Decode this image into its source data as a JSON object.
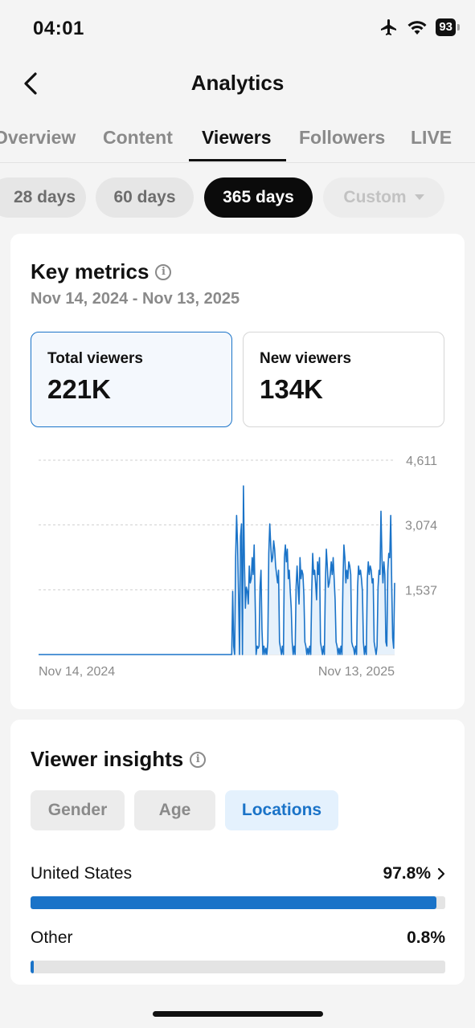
{
  "status": {
    "time": "04:01",
    "battery": "93"
  },
  "nav": {
    "title": "Analytics"
  },
  "tabs": [
    {
      "label": "Overview"
    },
    {
      "label": "Content"
    },
    {
      "label": "Viewers"
    },
    {
      "label": "Followers"
    },
    {
      "label": "LIVE"
    }
  ],
  "ranges": [
    {
      "label": "28 days"
    },
    {
      "label": "60 days"
    },
    {
      "label": "365 days"
    },
    {
      "label": "Custom"
    }
  ],
  "key_metrics": {
    "title": "Key metrics",
    "date_range": "Nov 14, 2024 - Nov 13, 2025",
    "total": {
      "label": "Total viewers",
      "value": "221K"
    },
    "new": {
      "label": "New viewers",
      "value": "134K"
    }
  },
  "chart_data": {
    "type": "area",
    "series": [
      {
        "values": [
          0,
          0,
          0,
          0,
          0,
          0,
          0,
          0,
          0,
          0,
          0,
          0,
          0,
          0,
          0,
          0,
          0,
          0,
          0,
          0,
          0,
          0,
          0,
          0,
          0,
          0,
          0,
          0,
          0,
          0,
          0,
          0,
          0,
          0,
          0,
          0,
          0,
          0,
          0,
          0,
          0,
          0,
          0,
          0,
          0,
          0,
          0,
          0,
          0,
          0,
          0,
          0,
          0,
          0,
          0,
          0,
          0,
          0,
          0,
          0,
          0,
          0,
          0,
          0,
          0,
          0,
          0,
          0,
          0,
          0,
          0,
          0,
          0,
          0,
          0,
          0,
          0,
          0,
          0,
          0,
          0,
          0,
          0,
          0,
          0,
          0,
          0,
          0,
          0,
          0,
          0,
          0,
          0,
          0,
          0,
          0,
          0,
          0,
          0,
          0,
          0,
          0,
          0,
          0,
          0,
          0,
          0,
          0,
          0,
          0,
          0,
          0,
          0,
          0,
          0,
          0,
          0,
          0,
          0,
          0,
          0,
          0,
          0,
          0,
          0,
          0,
          0,
          0,
          0,
          0,
          0,
          0,
          0,
          0,
          0,
          0,
          0,
          0,
          0,
          0,
          0,
          0,
          0,
          0,
          0,
          0,
          0,
          0,
          0,
          0,
          0,
          0,
          0,
          0,
          0,
          0,
          0,
          0,
          0,
          0,
          0,
          0,
          0,
          0,
          0,
          0,
          0,
          0,
          0,
          0,
          0,
          0,
          0,
          0,
          0,
          0,
          0,
          0,
          0,
          0,
          0,
          0,
          0,
          0,
          0,
          0,
          0,
          0,
          0,
          0,
          0,
          0,
          0,
          0,
          0,
          0,
          0,
          0,
          0,
          0,
          0,
          0,
          0,
          0,
          0,
          0,
          0,
          0,
          0,
          0,
          0,
          0,
          0,
          0,
          0,
          0,
          0,
          0,
          0,
          0,
          0,
          0,
          0,
          0,
          0,
          0,
          0,
          0,
          0,
          0,
          0,
          0,
          0,
          0,
          0,
          0,
          0,
          0,
          0,
          0,
          0,
          0,
          0,
          0,
          0,
          0,
          0,
          0,
          0,
          0,
          0,
          0,
          0,
          0,
          0,
          0,
          0,
          0,
          0,
          0,
          0,
          0,
          0,
          0,
          0,
          0,
          0,
          0,
          0,
          0,
          0,
          0,
          0,
          0,
          0,
          0,
          0,
          0,
          0,
          0,
          0,
          0,
          0,
          0,
          0,
          0,
          0,
          0,
          0,
          0,
          0,
          0,
          0,
          0,
          0,
          0,
          0,
          0,
          0,
          0,
          0,
          0,
          0,
          0,
          0,
          0,
          0,
          0,
          0,
          0,
          0,
          0,
          0,
          0,
          0,
          0,
          0,
          0,
          0,
          0,
          0,
          0,
          0,
          0,
          0,
          0,
          0,
          0,
          0,
          0,
          0,
          0,
          0,
          0,
          0,
          0,
          0,
          0,
          0,
          0,
          0,
          0,
          0,
          0,
          0,
          0,
          0,
          0,
          0,
          0,
          0,
          0,
          0,
          0,
          0,
          0,
          0,
          0,
          0,
          0,
          0,
          0,
          0,
          0,
          0,
          0,
          0,
          0,
          0,
          0,
          0,
          0,
          0,
          0,
          0,
          0,
          0,
          0,
          0,
          0,
          0,
          0,
          0
        ]
      }
    ],
    "peaks": [
      [
        199,
        1500
      ],
      [
        200,
        200
      ],
      [
        202,
        2300
      ],
      [
        203,
        3300
      ],
      [
        204,
        2600
      ],
      [
        205,
        1400
      ],
      [
        207,
        2800
      ],
      [
        208,
        3100
      ],
      [
        210,
        4000
      ],
      [
        211,
        2200
      ],
      [
        212,
        1100
      ],
      [
        213,
        1600
      ],
      [
        214,
        1500
      ],
      [
        215,
        1200
      ],
      [
        216,
        2100
      ],
      [
        217,
        1700
      ],
      [
        218,
        1800
      ],
      [
        219,
        2300
      ],
      [
        220,
        1900
      ],
      [
        221,
        2600
      ],
      [
        222,
        1300
      ],
      [
        224,
        200
      ],
      [
        225,
        150
      ],
      [
        226,
        200
      ],
      [
        227,
        1600
      ],
      [
        228,
        2000
      ],
      [
        229,
        600
      ],
      [
        231,
        200
      ],
      [
        233,
        150
      ],
      [
        235,
        300
      ],
      [
        236,
        2400
      ],
      [
        237,
        3100
      ],
      [
        238,
        2600
      ],
      [
        239,
        2200
      ],
      [
        240,
        2300
      ],
      [
        241,
        2700
      ],
      [
        242,
        2500
      ],
      [
        243,
        2100
      ],
      [
        244,
        1900
      ],
      [
        245,
        1700
      ],
      [
        246,
        2000
      ],
      [
        247,
        300
      ],
      [
        248,
        150
      ],
      [
        250,
        200
      ],
      [
        252,
        2300
      ],
      [
        253,
        2600
      ],
      [
        254,
        2200
      ],
      [
        255,
        2500
      ],
      [
        256,
        1800
      ],
      [
        257,
        2000
      ],
      [
        258,
        1500
      ],
      [
        259,
        1100
      ],
      [
        260,
        300
      ],
      [
        262,
        200
      ],
      [
        264,
        1600
      ],
      [
        265,
        2100
      ],
      [
        266,
        1600
      ],
      [
        267,
        1200
      ],
      [
        268,
        2300
      ],
      [
        269,
        1800
      ],
      [
        270,
        2000
      ],
      [
        271,
        1900
      ],
      [
        272,
        1400
      ],
      [
        273,
        300
      ],
      [
        274,
        200
      ],
      [
        276,
        150
      ],
      [
        278,
        200
      ],
      [
        280,
        1500
      ],
      [
        281,
        2400
      ],
      [
        282,
        1900
      ],
      [
        283,
        2000
      ],
      [
        284,
        1700
      ],
      [
        285,
        1300
      ],
      [
        286,
        2200
      ],
      [
        287,
        1900
      ],
      [
        288,
        2300
      ],
      [
        289,
        300
      ],
      [
        290,
        150
      ],
      [
        292,
        200
      ],
      [
        294,
        1700
      ],
      [
        295,
        2500
      ],
      [
        296,
        2100
      ],
      [
        297,
        1600
      ],
      [
        298,
        1700
      ],
      [
        299,
        1900
      ],
      [
        300,
        2200
      ],
      [
        301,
        1900
      ],
      [
        302,
        2300
      ],
      [
        303,
        1800
      ],
      [
        304,
        1300
      ],
      [
        305,
        300
      ],
      [
        306,
        200
      ],
      [
        308,
        150
      ],
      [
        310,
        200
      ],
      [
        312,
        1700
      ],
      [
        313,
        2600
      ],
      [
        314,
        2300
      ],
      [
        315,
        1700
      ],
      [
        316,
        2000
      ],
      [
        317,
        1800
      ],
      [
        318,
        2200
      ],
      [
        319,
        2100
      ],
      [
        320,
        1900
      ],
      [
        321,
        300
      ],
      [
        322,
        200
      ],
      [
        323,
        150
      ],
      [
        325,
        200
      ],
      [
        327,
        1600
      ],
      [
        328,
        2100
      ],
      [
        329,
        1900
      ],
      [
        330,
        2000
      ],
      [
        331,
        1800
      ],
      [
        332,
        1500
      ],
      [
        333,
        300
      ],
      [
        335,
        200
      ],
      [
        337,
        1800
      ],
      [
        338,
        2200
      ],
      [
        339,
        1900
      ],
      [
        340,
        2100
      ],
      [
        341,
        2000
      ],
      [
        342,
        1700
      ],
      [
        343,
        1800
      ],
      [
        344,
        300
      ],
      [
        345,
        150
      ],
      [
        347,
        200
      ],
      [
        348,
        1600
      ],
      [
        349,
        2000
      ],
      [
        350,
        1900
      ],
      [
        351,
        3400
      ],
      [
        352,
        2300
      ],
      [
        353,
        1700
      ],
      [
        354,
        2200
      ],
      [
        355,
        1900
      ],
      [
        356,
        300
      ],
      [
        357,
        200
      ],
      [
        358,
        2000
      ],
      [
        359,
        2400
      ],
      [
        360,
        2300
      ],
      [
        361,
        3300
      ],
      [
        362,
        1700
      ],
      [
        363,
        400
      ],
      [
        364,
        150
      ],
      [
        365,
        1700
      ]
    ],
    "y_ticks": [
      "4,611",
      "3,074",
      "1,537"
    ],
    "x_ticks": [
      "Nov 14, 2024",
      "Nov 13, 2025"
    ],
    "ylim": [
      0,
      4611
    ],
    "grid": true,
    "color": "#1a73c8"
  },
  "insights": {
    "title": "Viewer insights",
    "segments": [
      {
        "label": "Gender"
      },
      {
        "label": "Age"
      },
      {
        "label": "Locations"
      }
    ],
    "locations": [
      {
        "name": "United States",
        "pct": "97.8%",
        "fraction": 0.978
      },
      {
        "name": "Other",
        "pct": "0.8%",
        "fraction": 0.008
      }
    ]
  }
}
